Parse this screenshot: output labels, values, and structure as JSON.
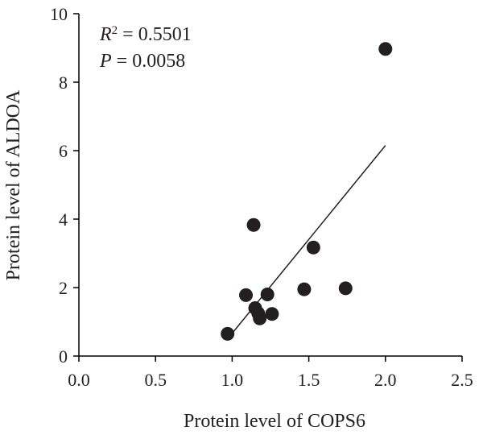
{
  "chart_data": {
    "type": "scatter",
    "title": "",
    "xlabel": "Protein level of COPS6",
    "ylabel": "Protein level of ALDOA",
    "xlim": [
      0,
      2.5
    ],
    "ylim": [
      0,
      10
    ],
    "xticks": [
      "0.0",
      "0.5",
      "1.0",
      "1.5",
      "2.0",
      "2.5"
    ],
    "yticks": [
      "0",
      "2",
      "4",
      "6",
      "8",
      "10"
    ],
    "points": [
      {
        "x": 0.97,
        "y": 0.65
      },
      {
        "x": 1.09,
        "y": 1.78
      },
      {
        "x": 1.14,
        "y": 3.83
      },
      {
        "x": 1.15,
        "y": 1.4
      },
      {
        "x": 1.17,
        "y": 1.25
      },
      {
        "x": 1.18,
        "y": 1.1
      },
      {
        "x": 1.23,
        "y": 1.8
      },
      {
        "x": 1.26,
        "y": 1.23
      },
      {
        "x": 1.47,
        "y": 1.95
      },
      {
        "x": 1.53,
        "y": 3.17
      },
      {
        "x": 1.74,
        "y": 1.98
      },
      {
        "x": 2.0,
        "y": 8.97
      }
    ],
    "fit_line": {
      "x": [
        0.97,
        2.0
      ],
      "y": [
        0.5,
        6.15
      ]
    },
    "annotation": {
      "r2_label": "R",
      "r2_superscript": "2",
      "r2_value": " = 0.5501",
      "p_label": "P",
      "p_value": " = 0.0058"
    }
  }
}
